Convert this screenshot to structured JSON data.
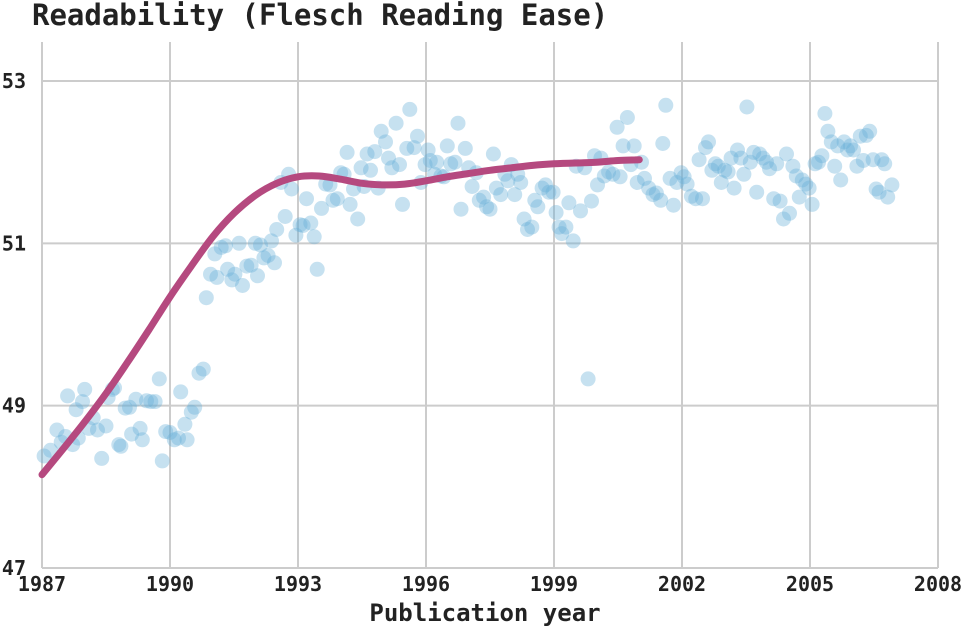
{
  "chart_data": {
    "type": "scatter",
    "title": "Readability (Flesch Reading Ease)",
    "xlabel": "Publication year",
    "ylabel": "",
    "xlim": [
      1987,
      2008
    ],
    "ylim": [
      47,
      53.5
    ],
    "xticks": [
      1987,
      1990,
      1993,
      1996,
      1999,
      2002,
      2005,
      2008
    ],
    "yticks": [
      47,
      49,
      51,
      53
    ],
    "grid": true,
    "colors": {
      "points": "#6ab0d8",
      "trend": "#b5497f",
      "grid": "#cccccc"
    },
    "series": [
      {
        "type": "scatter",
        "points": [
          [
            1987.05,
            48.38
          ],
          [
            1987.2,
            48.45
          ],
          [
            1987.35,
            48.7
          ],
          [
            1987.45,
            48.55
          ],
          [
            1987.55,
            48.62
          ],
          [
            1987.6,
            49.12
          ],
          [
            1987.72,
            48.52
          ],
          [
            1987.8,
            48.95
          ],
          [
            1987.85,
            48.6
          ],
          [
            1987.95,
            49.05
          ],
          [
            1988.0,
            49.2
          ],
          [
            1988.1,
            48.72
          ],
          [
            1988.2,
            48.85
          ],
          [
            1988.3,
            48.7
          ],
          [
            1988.4,
            48.35
          ],
          [
            1988.5,
            48.75
          ],
          [
            1988.55,
            49.1
          ],
          [
            1988.65,
            49.2
          ],
          [
            1988.7,
            49.22
          ],
          [
            1988.8,
            48.52
          ],
          [
            1988.85,
            48.5
          ],
          [
            1988.95,
            48.97
          ],
          [
            1989.05,
            48.98
          ],
          [
            1989.1,
            48.65
          ],
          [
            1989.2,
            49.08
          ],
          [
            1989.3,
            48.72
          ],
          [
            1989.35,
            48.58
          ],
          [
            1989.45,
            49.06
          ],
          [
            1989.55,
            49.05
          ],
          [
            1989.65,
            49.05
          ],
          [
            1989.75,
            49.33
          ],
          [
            1989.82,
            48.32
          ],
          [
            1989.9,
            48.68
          ],
          [
            1990.0,
            48.67
          ],
          [
            1990.1,
            48.58
          ],
          [
            1990.2,
            48.6
          ],
          [
            1990.25,
            49.17
          ],
          [
            1990.35,
            48.77
          ],
          [
            1990.4,
            48.58
          ],
          [
            1990.5,
            48.92
          ],
          [
            1990.58,
            48.98
          ],
          [
            1990.68,
            49.4
          ],
          [
            1990.78,
            49.45
          ],
          [
            1990.85,
            50.33
          ],
          [
            1990.95,
            50.62
          ],
          [
            1991.05,
            50.87
          ],
          [
            1991.1,
            50.58
          ],
          [
            1991.2,
            50.95
          ],
          [
            1991.3,
            50.97
          ],
          [
            1991.35,
            50.68
          ],
          [
            1991.45,
            50.55
          ],
          [
            1991.52,
            50.62
          ],
          [
            1991.62,
            51.0
          ],
          [
            1991.7,
            50.48
          ],
          [
            1991.8,
            50.72
          ],
          [
            1991.9,
            50.73
          ],
          [
            1992.0,
            51.0
          ],
          [
            1992.05,
            50.6
          ],
          [
            1992.12,
            50.98
          ],
          [
            1992.2,
            50.82
          ],
          [
            1992.3,
            50.85
          ],
          [
            1992.38,
            51.03
          ],
          [
            1992.45,
            50.76
          ],
          [
            1992.5,
            51.17
          ],
          [
            1992.6,
            51.75
          ],
          [
            1992.7,
            51.33
          ],
          [
            1992.78,
            51.85
          ],
          [
            1992.85,
            51.67
          ],
          [
            1992.95,
            51.1
          ],
          [
            1993.05,
            51.23
          ],
          [
            1993.12,
            51.22
          ],
          [
            1993.2,
            51.55
          ],
          [
            1993.3,
            51.25
          ],
          [
            1993.38,
            51.08
          ],
          [
            1993.45,
            50.68
          ],
          [
            1993.55,
            51.43
          ],
          [
            1993.65,
            51.73
          ],
          [
            1993.75,
            51.72
          ],
          [
            1993.82,
            51.53
          ],
          [
            1993.92,
            51.55
          ],
          [
            1994.0,
            51.87
          ],
          [
            1994.08,
            51.85
          ],
          [
            1994.15,
            52.12
          ],
          [
            1994.22,
            51.48
          ],
          [
            1994.3,
            51.67
          ],
          [
            1994.4,
            51.3
          ],
          [
            1994.48,
            51.93
          ],
          [
            1994.55,
            51.7
          ],
          [
            1994.62,
            52.1
          ],
          [
            1994.7,
            51.9
          ],
          [
            1994.8,
            52.13
          ],
          [
            1994.88,
            51.68
          ],
          [
            1994.95,
            52.38
          ],
          [
            1995.05,
            52.25
          ],
          [
            1995.12,
            52.05
          ],
          [
            1995.2,
            51.93
          ],
          [
            1995.3,
            52.48
          ],
          [
            1995.38,
            51.97
          ],
          [
            1995.45,
            51.48
          ],
          [
            1995.55,
            52.17
          ],
          [
            1995.62,
            52.65
          ],
          [
            1995.72,
            52.18
          ],
          [
            1995.8,
            52.32
          ],
          [
            1995.88,
            51.75
          ],
          [
            1995.98,
            51.97
          ],
          [
            1996.05,
            52.15
          ],
          [
            1996.1,
            52.02
          ],
          [
            1996.2,
            51.85
          ],
          [
            1996.25,
            52.0
          ],
          [
            1996.35,
            51.83
          ],
          [
            1996.42,
            51.82
          ],
          [
            1996.5,
            52.2
          ],
          [
            1996.58,
            51.98
          ],
          [
            1996.68,
            52.0
          ],
          [
            1996.75,
            52.48
          ],
          [
            1996.82,
            51.42
          ],
          [
            1996.92,
            52.17
          ],
          [
            1997.0,
            51.93
          ],
          [
            1997.08,
            51.7
          ],
          [
            1997.18,
            51.87
          ],
          [
            1997.25,
            51.53
          ],
          [
            1997.35,
            51.57
          ],
          [
            1997.42,
            51.45
          ],
          [
            1997.5,
            51.42
          ],
          [
            1997.58,
            52.1
          ],
          [
            1997.65,
            51.68
          ],
          [
            1997.75,
            51.6
          ],
          [
            1997.85,
            51.85
          ],
          [
            1997.92,
            51.77
          ],
          [
            1998.0,
            51.97
          ],
          [
            1998.08,
            51.6
          ],
          [
            1998.15,
            51.85
          ],
          [
            1998.22,
            51.75
          ],
          [
            1998.3,
            51.3
          ],
          [
            1998.38,
            51.17
          ],
          [
            1998.48,
            51.2
          ],
          [
            1998.55,
            51.53
          ],
          [
            1998.62,
            51.45
          ],
          [
            1998.72,
            51.68
          ],
          [
            1998.8,
            51.72
          ],
          [
            1998.88,
            51.63
          ],
          [
            1998.98,
            51.63
          ],
          [
            1999.05,
            51.38
          ],
          [
            1999.12,
            51.2
          ],
          [
            1999.18,
            51.12
          ],
          [
            1999.28,
            51.2
          ],
          [
            1999.35,
            51.5
          ],
          [
            1999.45,
            51.03
          ],
          [
            1999.52,
            51.95
          ],
          [
            1999.62,
            51.4
          ],
          [
            1999.72,
            51.93
          ],
          [
            1999.8,
            49.33
          ],
          [
            1999.88,
            51.52
          ],
          [
            1999.95,
            52.08
          ],
          [
            2000.02,
            51.72
          ],
          [
            2000.1,
            52.05
          ],
          [
            2000.18,
            51.83
          ],
          [
            2000.28,
            51.88
          ],
          [
            2000.38,
            51.85
          ],
          [
            2000.48,
            52.43
          ],
          [
            2000.55,
            51.82
          ],
          [
            2000.62,
            52.2
          ],
          [
            2000.72,
            52.55
          ],
          [
            2000.8,
            51.97
          ],
          [
            2000.88,
            52.2
          ],
          [
            2000.95,
            51.75
          ],
          [
            2001.05,
            52.0
          ],
          [
            2001.12,
            51.8
          ],
          [
            2001.22,
            51.68
          ],
          [
            2001.32,
            51.6
          ],
          [
            2001.4,
            51.62
          ],
          [
            2001.5,
            51.53
          ],
          [
            2001.55,
            52.23
          ],
          [
            2001.62,
            52.7
          ],
          [
            2001.72,
            51.8
          ],
          [
            2001.8,
            51.47
          ],
          [
            2001.88,
            51.75
          ],
          [
            2001.98,
            51.87
          ],
          [
            2002.05,
            51.82
          ],
          [
            2002.12,
            51.73
          ],
          [
            2002.22,
            51.58
          ],
          [
            2002.32,
            51.55
          ],
          [
            2002.4,
            52.03
          ],
          [
            2002.48,
            51.55
          ],
          [
            2002.55,
            52.18
          ],
          [
            2002.62,
            52.25
          ],
          [
            2002.7,
            51.9
          ],
          [
            2002.78,
            51.98
          ],
          [
            2002.85,
            51.95
          ],
          [
            2002.92,
            51.75
          ],
          [
            2003.0,
            51.9
          ],
          [
            2003.08,
            51.88
          ],
          [
            2003.15,
            52.05
          ],
          [
            2003.22,
            51.68
          ],
          [
            2003.3,
            52.15
          ],
          [
            2003.38,
            52.05
          ],
          [
            2003.45,
            51.85
          ],
          [
            2003.52,
            52.68
          ],
          [
            2003.6,
            52.0
          ],
          [
            2003.68,
            52.12
          ],
          [
            2003.75,
            51.63
          ],
          [
            2003.82,
            52.1
          ],
          [
            2003.9,
            52.05
          ],
          [
            2003.98,
            52.0
          ],
          [
            2004.05,
            51.92
          ],
          [
            2004.15,
            51.55
          ],
          [
            2004.22,
            51.98
          ],
          [
            2004.3,
            51.52
          ],
          [
            2004.38,
            51.3
          ],
          [
            2004.45,
            52.1
          ],
          [
            2004.52,
            51.37
          ],
          [
            2004.6,
            51.95
          ],
          [
            2004.68,
            51.83
          ],
          [
            2004.75,
            51.57
          ],
          [
            2004.82,
            51.78
          ],
          [
            2004.9,
            51.73
          ],
          [
            2004.98,
            51.68
          ],
          [
            2005.05,
            51.48
          ],
          [
            2005.12,
            51.98
          ],
          [
            2005.2,
            52.0
          ],
          [
            2005.28,
            52.08
          ],
          [
            2005.35,
            52.6
          ],
          [
            2005.42,
            52.38
          ],
          [
            2005.5,
            52.25
          ],
          [
            2005.58,
            51.95
          ],
          [
            2005.65,
            52.2
          ],
          [
            2005.72,
            51.78
          ],
          [
            2005.8,
            52.25
          ],
          [
            2005.88,
            52.15
          ],
          [
            2005.95,
            52.2
          ],
          [
            2006.02,
            52.15
          ],
          [
            2006.1,
            51.95
          ],
          [
            2006.18,
            52.32
          ],
          [
            2006.25,
            52.02
          ],
          [
            2006.32,
            52.33
          ],
          [
            2006.4,
            52.38
          ],
          [
            2006.48,
            52.03
          ],
          [
            2006.55,
            51.67
          ],
          [
            2006.62,
            51.63
          ],
          [
            2006.68,
            52.03
          ],
          [
            2006.75,
            51.98
          ],
          [
            2006.82,
            51.57
          ],
          [
            2006.92,
            51.72
          ]
        ]
      },
      {
        "type": "line",
        "points": [
          [
            1987.0,
            48.15
          ],
          [
            1987.5,
            48.47
          ],
          [
            1988.0,
            48.8
          ],
          [
            1988.5,
            49.15
          ],
          [
            1989.0,
            49.53
          ],
          [
            1989.5,
            49.93
          ],
          [
            1990.0,
            50.34
          ],
          [
            1990.5,
            50.72
          ],
          [
            1991.0,
            51.08
          ],
          [
            1991.5,
            51.37
          ],
          [
            1992.0,
            51.59
          ],
          [
            1992.5,
            51.74
          ],
          [
            1993.0,
            51.82
          ],
          [
            1993.5,
            51.83
          ],
          [
            1994.0,
            51.79
          ],
          [
            1994.5,
            51.74
          ],
          [
            1995.0,
            51.72
          ],
          [
            1995.5,
            51.73
          ],
          [
            1996.0,
            51.77
          ],
          [
            1996.5,
            51.82
          ],
          [
            1997.0,
            51.86
          ],
          [
            1997.5,
            51.9
          ],
          [
            1998.0,
            51.93
          ],
          [
            1998.5,
            51.96
          ],
          [
            1999.0,
            51.98
          ],
          [
            1999.5,
            51.99
          ],
          [
            2000.0,
            52.0
          ],
          [
            2000.5,
            52.02
          ],
          [
            2001.0,
            52.03
          ]
        ]
      }
    ]
  }
}
